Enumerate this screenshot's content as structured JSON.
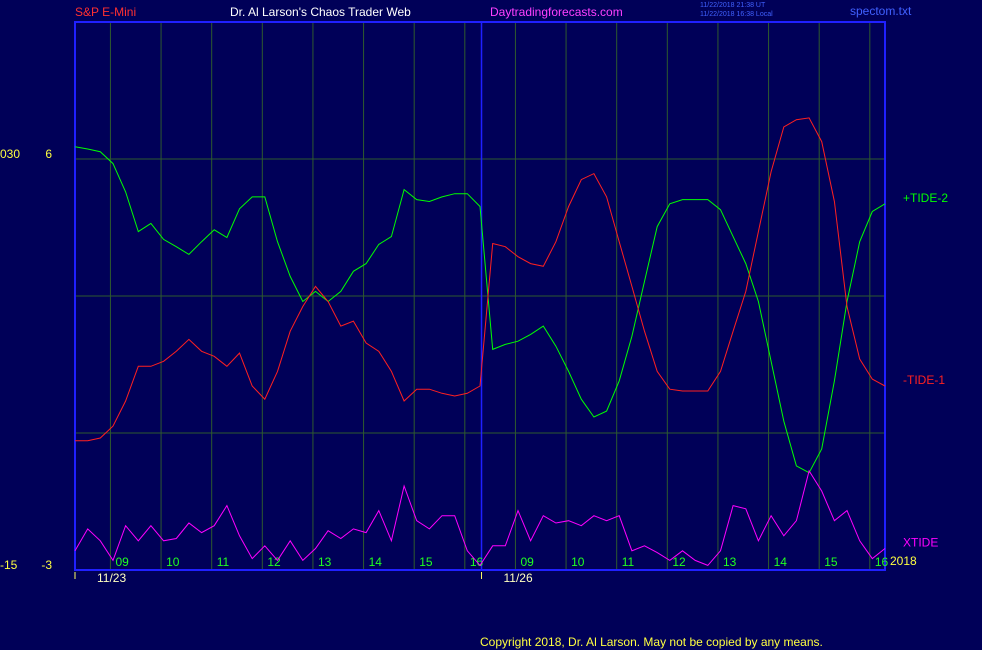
{
  "chart_data": {
    "type": "line",
    "title": "Dr. Al Larson's Chaos Trader Web",
    "subtitle": "S&P E-Mini",
    "website": "Daytradingforecasts.com",
    "timestamps": [
      "11/22/2018 21:38 UT",
      "11/22/2018 16:38 Local"
    ],
    "filename": "spectom.txt",
    "copyright": "Copyright 2018, Dr. Al Larson. May not be copied by any means.",
    "year_label": "2018",
    "x": [
      8.3,
      8.55,
      8.8,
      9.05,
      9.3,
      9.55,
      9.8,
      10.05,
      10.3,
      10.55,
      10.8,
      11.05,
      11.3,
      11.55,
      11.8,
      12.05,
      12.3,
      12.55,
      12.8,
      13.05,
      13.3,
      13.55,
      13.8,
      14.05,
      14.3,
      14.55,
      14.8,
      15.05,
      15.3,
      15.55,
      15.8,
      16.05,
      16.3,
      16.55,
      16.8,
      17.05,
      17.3,
      17.55,
      17.8,
      18.05,
      18.3,
      18.55,
      18.8,
      19.05,
      19.3,
      19.55,
      19.8,
      20.05,
      20.3,
      20.55,
      20.8,
      21.05,
      21.3,
      21.55,
      21.8,
      22.05,
      22.3,
      22.55,
      22.8,
      23.05,
      23.3,
      23.55,
      23.8,
      24.05,
      24.3
    ],
    "xlim": [
      8.3,
      24.3
    ],
    "xticks": [
      {
        "value": 9,
        "label": "09"
      },
      10,
      11,
      12,
      13,
      14,
      15,
      16,
      {
        "value": 17,
        "label": "09"
      },
      {
        "value": 18,
        "label": "10"
      },
      {
        "value": 19,
        "label": "11"
      },
      {
        "value": 20,
        "label": "12"
      },
      {
        "value": 21,
        "label": "13"
      },
      {
        "value": 22,
        "label": "14"
      },
      {
        "value": 23,
        "label": "15"
      },
      {
        "value": 24,
        "label": "16"
      }
    ],
    "date_ticks": [
      {
        "value": 8.3,
        "label": "11/23"
      },
      {
        "value": 16.33,
        "label": "11/26"
      }
    ],
    "ylim": [
      -3,
      9
    ],
    "yticks": [
      6,
      -3
    ],
    "ygrid": [
      0,
      3,
      6
    ],
    "y2lim": [
      -15,
      45
    ],
    "y2ticks": [
      {
        "value": 30,
        "label": "030"
      },
      -15
    ],
    "grid": true,
    "series": [
      {
        "name": "+TIDE-2",
        "color": "#00ff00",
        "values": [
          6.27,
          6.22,
          6.16,
          5.9,
          5.28,
          4.41,
          4.59,
          4.24,
          4.08,
          3.91,
          4.19,
          4.45,
          4.28,
          4.91,
          5.17,
          5.17,
          4.19,
          3.43,
          2.88,
          3.1,
          2.88,
          3.1,
          3.54,
          3.71,
          4.13,
          4.3,
          5.33,
          5.11,
          5.07,
          5.17,
          5.24,
          5.24,
          4.96,
          1.83,
          1.94,
          2.01,
          2.16,
          2.34,
          1.9,
          1.35,
          0.74,
          0.35,
          0.48,
          1.14,
          2.12,
          3.32,
          4.52,
          5.02,
          5.11,
          5.11,
          5.11,
          4.89,
          4.3,
          3.71,
          2.88,
          1.57,
          0.26,
          -0.72,
          -0.87,
          -0.35,
          1.14,
          2.88,
          4.19,
          4.85,
          5.02
        ]
      },
      {
        "name": "-TIDE-1",
        "color": "#ff2020",
        "values": [
          -0.17,
          -0.17,
          -0.11,
          0.15,
          0.7,
          1.46,
          1.46,
          1.57,
          1.79,
          2.05,
          1.79,
          1.68,
          1.46,
          1.75,
          1.03,
          0.74,
          1.35,
          2.23,
          2.77,
          3.21,
          2.88,
          2.34,
          2.45,
          1.97,
          1.79,
          1.35,
          0.7,
          0.96,
          0.96,
          0.87,
          0.81,
          0.87,
          1.03,
          4.15,
          4.08,
          3.86,
          3.71,
          3.65,
          4.19,
          4.96,
          5.55,
          5.68,
          5.17,
          4.19,
          3.21,
          2.23,
          1.35,
          0.96,
          0.92,
          0.92,
          0.92,
          1.35,
          2.23,
          3.1,
          4.41,
          5.72,
          6.7,
          6.86,
          6.9,
          6.38,
          5.07,
          2.77,
          1.62,
          1.18,
          1.03
        ]
      },
      {
        "name": "XTIDE",
        "color": "#ff00ff",
        "values": [
          -2.58,
          -2.1,
          -2.36,
          -2.79,
          -2.03,
          -2.36,
          -2.03,
          -2.36,
          -2.31,
          -1.97,
          -2.18,
          -2.03,
          -1.59,
          -2.25,
          -2.75,
          -2.47,
          -2.79,
          -2.36,
          -2.79,
          -2.53,
          -2.14,
          -2.31,
          -2.1,
          -2.18,
          -1.7,
          -2.36,
          -1.16,
          -1.92,
          -2.1,
          -1.81,
          -1.81,
          -2.58,
          -2.9,
          -2.47,
          -2.47,
          -1.7,
          -2.36,
          -1.81,
          -1.97,
          -1.92,
          -2.03,
          -1.81,
          -1.92,
          -1.81,
          -2.58,
          -2.47,
          -2.62,
          -2.79,
          -2.58,
          -2.79,
          -2.9,
          -2.58,
          -1.59,
          -1.66,
          -2.36,
          -1.81,
          -2.25,
          -1.92,
          -0.83,
          -1.27,
          -1.92,
          -1.7,
          -2.36,
          -2.75,
          -2.53
        ]
      }
    ]
  }
}
